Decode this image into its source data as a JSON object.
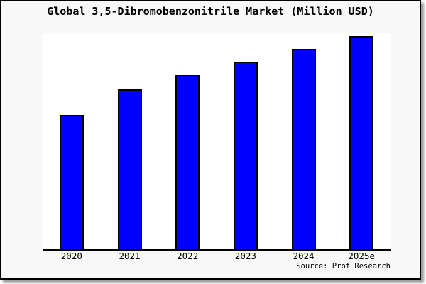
{
  "title": "Global 3,5-Dibromobenzonitrile Market (Million USD)",
  "source_label": "Source: Prof Research",
  "colors": {
    "bar_fill": "#0000ff",
    "bar_border": "#000000",
    "card_background": "#f8f8f8",
    "plot_background": "#ffffff",
    "card_border": "#000000",
    "shadow": "#999999",
    "text": "#000000"
  },
  "chart_data": {
    "type": "bar",
    "title": "Global 3,5-Dibromobenzonitrile Market (Million USD)",
    "categories": [
      "2020",
      "2021",
      "2022",
      "2023",
      "2024",
      "2025e"
    ],
    "values": [
      63,
      75,
      82,
      88,
      94,
      100
    ],
    "xlabel": "",
    "ylabel": "",
    "ylim": [
      0,
      100
    ],
    "grid": false,
    "legend": false,
    "y_axis_visible": false,
    "value_note": "No y-axis ticks or data labels are shown in the chart; values are relative bar heights normalized so the 2025e bar = 100."
  }
}
